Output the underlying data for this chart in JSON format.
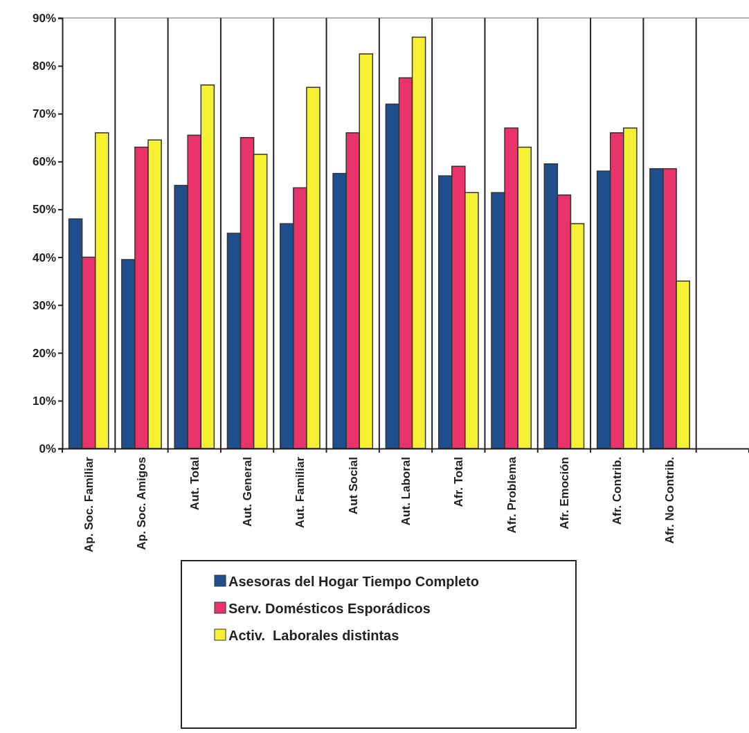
{
  "chart_data": {
    "type": "bar",
    "categories": [
      "Ap. Soc. Familiar",
      "Ap. Soc. Amigos",
      "Aut. Total",
      "Aut. General",
      "Aut. Familiar",
      "Aut Social",
      "Aut. Laboral",
      "Afr. Total",
      "Afr. Problema",
      "Afr. Emoción",
      "Afr. Contrib.",
      "Afr. No Contrib.",
      null
    ],
    "series": [
      {
        "name": "Asesoras del Hogar Tiempo Completo",
        "color": "#1f4e8c",
        "values": [
          48,
          39.5,
          55,
          45,
          47,
          57.5,
          72,
          57,
          53.5,
          59.5,
          58,
          58.5,
          null
        ]
      },
      {
        "name": "Serv. Domésticos Esporádicos",
        "color": "#e8336b",
        "values": [
          40,
          63,
          65.5,
          65,
          54.5,
          66,
          77.5,
          59,
          67,
          53,
          66,
          58.5,
          null
        ]
      },
      {
        "name": "Activ.  Laborales distintas",
        "color": "#f5f032",
        "values": [
          66,
          64.5,
          76,
          61.5,
          75.5,
          82.5,
          86,
          53.5,
          63,
          47,
          67,
          35,
          null
        ]
      }
    ],
    "ylim": [
      0,
      90
    ],
    "yticks": [
      {
        "value": 0,
        "label": "0%"
      },
      {
        "value": 10,
        "label": "10%"
      },
      {
        "value": 20,
        "label": "20%"
      },
      {
        "value": 30,
        "label": "30%"
      },
      {
        "value": 40,
        "label": "40%"
      },
      {
        "value": 50,
        "label": "50%"
      },
      {
        "value": 60,
        "label": "60%"
      },
      {
        "value": 70,
        "label": "70%"
      },
      {
        "value": 80,
        "label": "80%"
      },
      {
        "value": 90,
        "label": "90%"
      }
    ],
    "grid": "x",
    "legend": "bottom"
  }
}
